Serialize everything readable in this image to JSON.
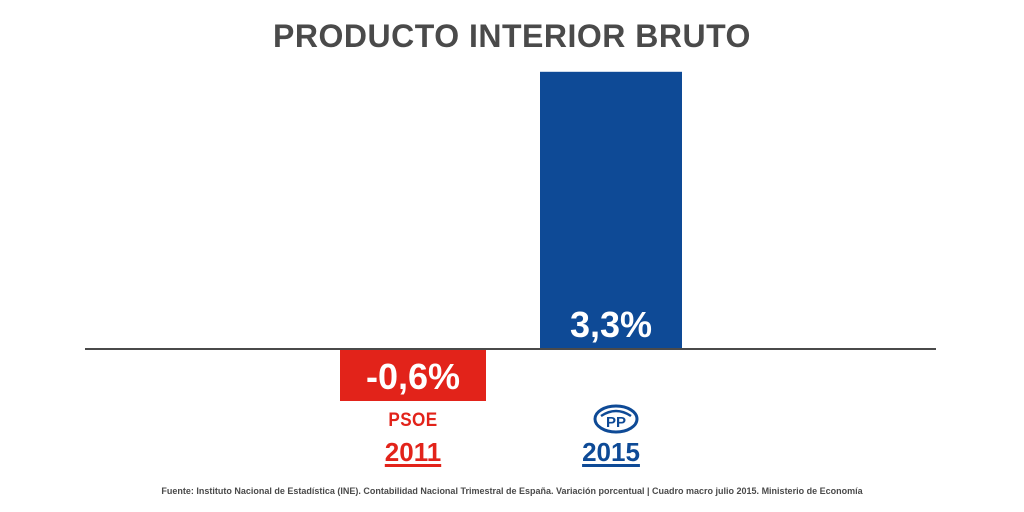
{
  "title": "PRODUCTO INTERIOR BRUTO",
  "chart_data": {
    "type": "bar",
    "title": "PRODUCTO INTERIOR BRUTO",
    "categories": [
      "2011",
      "2015"
    ],
    "parties": [
      "PSOE",
      "PP"
    ],
    "values": [
      -0.6,
      3.3
    ],
    "value_labels": [
      "-0,6%",
      "3,3%"
    ],
    "colors": [
      "#e2231a",
      "#0e4a96"
    ],
    "unit": "%",
    "xlabel": "",
    "ylabel": "",
    "ylim": [
      -0.6,
      3.3
    ],
    "grid": false
  },
  "labels": {
    "psoe": "PSOE",
    "pp_logo": "PP",
    "year_2011": "2011",
    "year_2015": "2015"
  },
  "source": "Fuente: Instituto Nacional de Estadística (INE). Contabilidad Nacional Trimestral de España. Variación porcentual | Cuadro macro julio 2015. Ministerio de Economía",
  "colors": {
    "baseline": "#4a4a4a",
    "psoe_red": "#e2231a",
    "pp_blue": "#0e4a96"
  }
}
